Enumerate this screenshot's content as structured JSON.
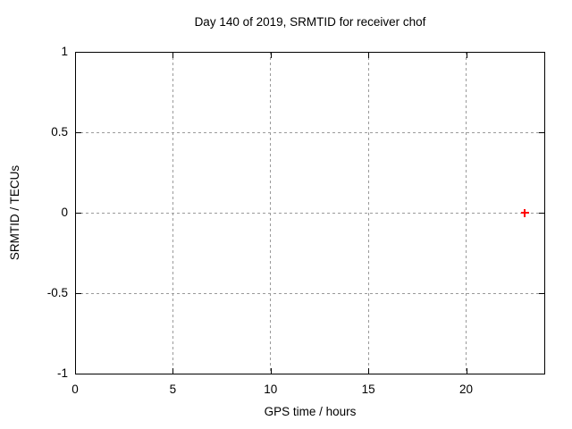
{
  "chart_data": {
    "type": "scatter",
    "title": "Day 140 of 2019, SRMTID for receiver chof",
    "xlabel": "GPS time / hours",
    "ylabel": "SRMTID / TECUs",
    "xlim": [
      0,
      24
    ],
    "ylim": [
      -1,
      1
    ],
    "xticks": [
      {
        "value": 0,
        "label": "0"
      },
      {
        "value": 5,
        "label": "5"
      },
      {
        "value": 10,
        "label": "10"
      },
      {
        "value": 15,
        "label": "15"
      },
      {
        "value": 20,
        "label": "20"
      }
    ],
    "yticks": [
      {
        "value": 1,
        "label": "1"
      },
      {
        "value": 0.5,
        "label": "0.5"
      },
      {
        "value": 0,
        "label": "0"
      },
      {
        "value": -0.5,
        "label": "-0.5"
      },
      {
        "value": -1,
        "label": "-1"
      }
    ],
    "grid": true,
    "grid_style": "dashed",
    "legend": "none",
    "series": [
      {
        "marker": "plus",
        "marker_size": 9,
        "color": "#ff0000",
        "points": [
          {
            "x": 23,
            "y": 0
          }
        ]
      }
    ]
  },
  "colors": {
    "background": "#ffffff",
    "border": "#000000",
    "grid": "#9a9a9a",
    "text": "#000000"
  }
}
